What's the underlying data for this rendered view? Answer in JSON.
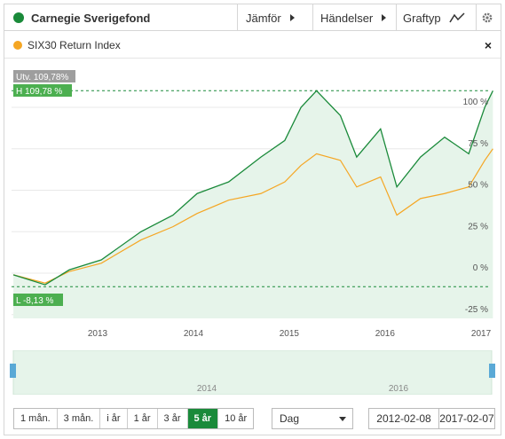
{
  "toolbar": {
    "fund_name": "Carnegie Sverigefond",
    "compare_label": "Jämför",
    "events_label": "Händelser",
    "graph_type_label": "Graftyp",
    "fund_color": "#1a8a3a"
  },
  "legend": {
    "index_name": "SIX30 Return Index",
    "index_color": "#f5a623",
    "close_symbol": "×"
  },
  "badges": {
    "development": "Utv. 109,78%",
    "high": "H 109,78 %",
    "low": "L -8,13 %"
  },
  "chart_data": {
    "type": "line",
    "x_ticks": [
      "2013",
      "2014",
      "2015",
      "2016",
      "2017"
    ],
    "y_ticks": [
      "100 %",
      "75 %",
      "50 %",
      "25 %",
      "0 %",
      "-25 %"
    ],
    "ylim": [
      -25,
      110
    ],
    "x_range": [
      "2012-02-08",
      "2017-02-07"
    ],
    "series": [
      {
        "name": "Carnegie Sverigefond",
        "color": "#1a8a3a",
        "x": [
          "2012-02",
          "2012-06",
          "2012-09",
          "2013-01",
          "2013-06",
          "2013-10",
          "2014-01",
          "2014-05",
          "2014-09",
          "2014-12",
          "2015-02",
          "2015-04",
          "2015-07",
          "2015-09",
          "2015-12",
          "2016-02",
          "2016-05",
          "2016-08",
          "2016-11",
          "2017-01",
          "2017-02"
        ],
        "values": [
          -1,
          -7,
          2,
          8,
          25,
          35,
          48,
          55,
          70,
          80,
          100,
          110,
          95,
          70,
          87,
          52,
          70,
          82,
          72,
          100,
          110
        ]
      },
      {
        "name": "SIX30 Return Index",
        "color": "#f5a623",
        "x": [
          "2012-02",
          "2012-06",
          "2012-09",
          "2013-01",
          "2013-06",
          "2013-10",
          "2014-01",
          "2014-05",
          "2014-09",
          "2014-12",
          "2015-02",
          "2015-04",
          "2015-07",
          "2015-09",
          "2015-12",
          "2016-02",
          "2016-05",
          "2016-08",
          "2016-11",
          "2017-01",
          "2017-02"
        ],
        "values": [
          -1,
          -6,
          1,
          6,
          20,
          28,
          36,
          44,
          48,
          55,
          65,
          72,
          68,
          52,
          58,
          35,
          45,
          48,
          52,
          68,
          75
        ]
      }
    ],
    "area_fill": "#e6f4ea"
  },
  "navigator": {
    "labels": [
      "2014",
      "2016"
    ]
  },
  "range_buttons": [
    "1 mån.",
    "3 mån.",
    "i år",
    "1 år",
    "3 år",
    "5 år",
    "10 år"
  ],
  "active_range": "5 år",
  "interval_select": "Dag",
  "date_from": "2012-02-08",
  "date_to": "2017-02-07"
}
